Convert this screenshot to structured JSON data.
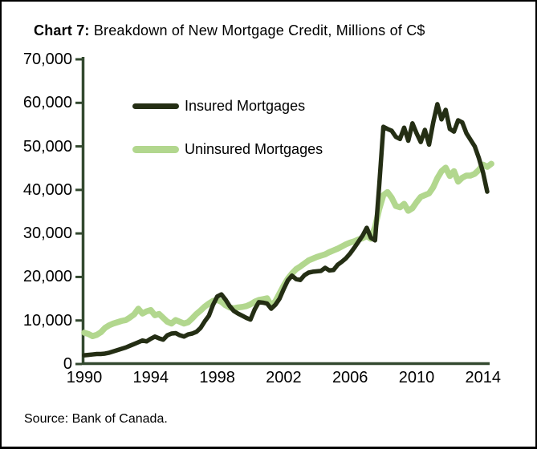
{
  "figure": {
    "title_prefix": "Chart 7:",
    "title_rest": " Breakdown of New Mortgage Credit, Millions of C$",
    "source": "Source: Bank of Canada."
  },
  "colors": {
    "background": "#ffffff",
    "border": "#000000",
    "axis": "#33492f",
    "insured": "#242e14",
    "uninsured": "#b2d78e",
    "text": "#000000"
  },
  "chart_data": {
    "type": "line",
    "title": "Chart 7: Breakdown of New Mortgage Credit, Millions of C$",
    "xlabel": "",
    "ylabel": "Millions of C$",
    "xlim": [
      1989.8,
      2014.9
    ],
    "ylim": [
      0,
      70000
    ],
    "grid": false,
    "legend_position": "upper-left-inside",
    "yticks": [
      {
        "value": 70000,
        "label": "70,000"
      },
      {
        "value": 60000,
        "label": "60,000"
      },
      {
        "value": 50000,
        "label": "50,000"
      },
      {
        "value": 40000,
        "label": "40,000"
      },
      {
        "value": 30000,
        "label": "30,000"
      },
      {
        "value": 20000,
        "label": "20,000"
      },
      {
        "value": 10000,
        "label": "10,000"
      },
      {
        "value": 0,
        "label": "0"
      }
    ],
    "xticks": [
      {
        "value": 1990,
        "label": "1990"
      },
      {
        "value": 1994,
        "label": "1994"
      },
      {
        "value": 1998,
        "label": "1998"
      },
      {
        "value": 2002,
        "label": "2002"
      },
      {
        "value": 2006,
        "label": "2006"
      },
      {
        "value": 2010,
        "label": "2010"
      },
      {
        "value": 2014,
        "label": "2014"
      }
    ],
    "x": [
      1990,
      1990.25,
      1990.5,
      1990.75,
      1991,
      1991.25,
      1991.5,
      1991.75,
      1992,
      1992.25,
      1992.5,
      1992.75,
      1993,
      1993.25,
      1993.5,
      1993.75,
      1994,
      1994.25,
      1994.5,
      1994.75,
      1995,
      1995.25,
      1995.5,
      1995.75,
      1996,
      1996.25,
      1996.5,
      1996.75,
      1997,
      1997.25,
      1997.5,
      1997.75,
      1998,
      1998.25,
      1998.5,
      1998.75,
      1999,
      1999.25,
      1999.5,
      1999.75,
      2000,
      2000.25,
      2000.5,
      2000.75,
      2001,
      2001.25,
      2001.5,
      2001.75,
      2002,
      2002.25,
      2002.5,
      2002.75,
      2003,
      2003.25,
      2003.5,
      2003.75,
      2004,
      2004.25,
      2004.5,
      2004.75,
      2005,
      2005.25,
      2005.5,
      2005.75,
      2006,
      2006.25,
      2006.5,
      2006.75,
      2007,
      2007.25,
      2007.5,
      2007.75,
      2008,
      2008.25,
      2008.5,
      2008.75,
      2009,
      2009.25,
      2009.5,
      2009.75,
      2010,
      2010.25,
      2010.5,
      2010.75,
      2011,
      2011.25,
      2011.5,
      2011.75,
      2012,
      2012.25,
      2012.5,
      2012.75,
      2013,
      2013.25,
      2013.5,
      2013.75,
      2014,
      2014.25,
      2014.5
    ],
    "series": [
      {
        "name": "Insured Mortgages",
        "color": "#242e14",
        "values": [
          2000,
          2100,
          2200,
          2300,
          2300,
          2400,
          2600,
          2900,
          3200,
          3500,
          3800,
          4200,
          4600,
          5000,
          5400,
          5200,
          5800,
          6300,
          5900,
          5600,
          6600,
          7000,
          7100,
          6600,
          6300,
          6800,
          7000,
          7400,
          8300,
          9800,
          11100,
          13600,
          15500,
          16000,
          14800,
          13300,
          12200,
          11600,
          11100,
          10600,
          10200,
          12500,
          14200,
          14100,
          13900,
          12700,
          13600,
          15000,
          17200,
          19200,
          20300,
          19500,
          19300,
          20400,
          21000,
          21200,
          21300,
          21400,
          22100,
          21500,
          21600,
          22800,
          23500,
          24300,
          25400,
          26700,
          28100,
          29500,
          31300,
          29000,
          28400,
          41000,
          54500,
          54000,
          53600,
          52200,
          51700,
          54300,
          51300,
          55300,
          53000,
          51000,
          53800,
          50400,
          55500,
          59700,
          56200,
          58400,
          54000,
          53400,
          56000,
          55500,
          53000,
          51500,
          50000,
          47300,
          44000,
          39600,
          null
        ]
      },
      {
        "name": "Uninsured Mortgages",
        "color": "#b2d78e",
        "values": [
          7200,
          6900,
          6400,
          6700,
          7300,
          8300,
          8900,
          9300,
          9600,
          9900,
          10100,
          10700,
          11400,
          12700,
          11600,
          12100,
          12400,
          11200,
          11500,
          10600,
          9700,
          9300,
          10100,
          9700,
          9300,
          9600,
          10500,
          11500,
          12300,
          13200,
          13900,
          14500,
          14700,
          14300,
          13500,
          13000,
          12800,
          13000,
          13100,
          13300,
          13700,
          14300,
          14700,
          14900,
          15100,
          13400,
          14400,
          16200,
          18000,
          19600,
          20800,
          21800,
          22400,
          23100,
          23800,
          24200,
          24600,
          24900,
          25200,
          25700,
          26100,
          26500,
          27000,
          27500,
          27900,
          28200,
          28600,
          28900,
          29400,
          28800,
          31500,
          35600,
          38800,
          39500,
          38200,
          36300,
          36000,
          36800,
          35200,
          35800,
          37200,
          38400,
          38800,
          39200,
          40600,
          42700,
          44300,
          45100,
          43200,
          44300,
          41900,
          42800,
          43300,
          43300,
          43700,
          44600,
          45800,
          45300,
          46000
        ]
      }
    ]
  }
}
